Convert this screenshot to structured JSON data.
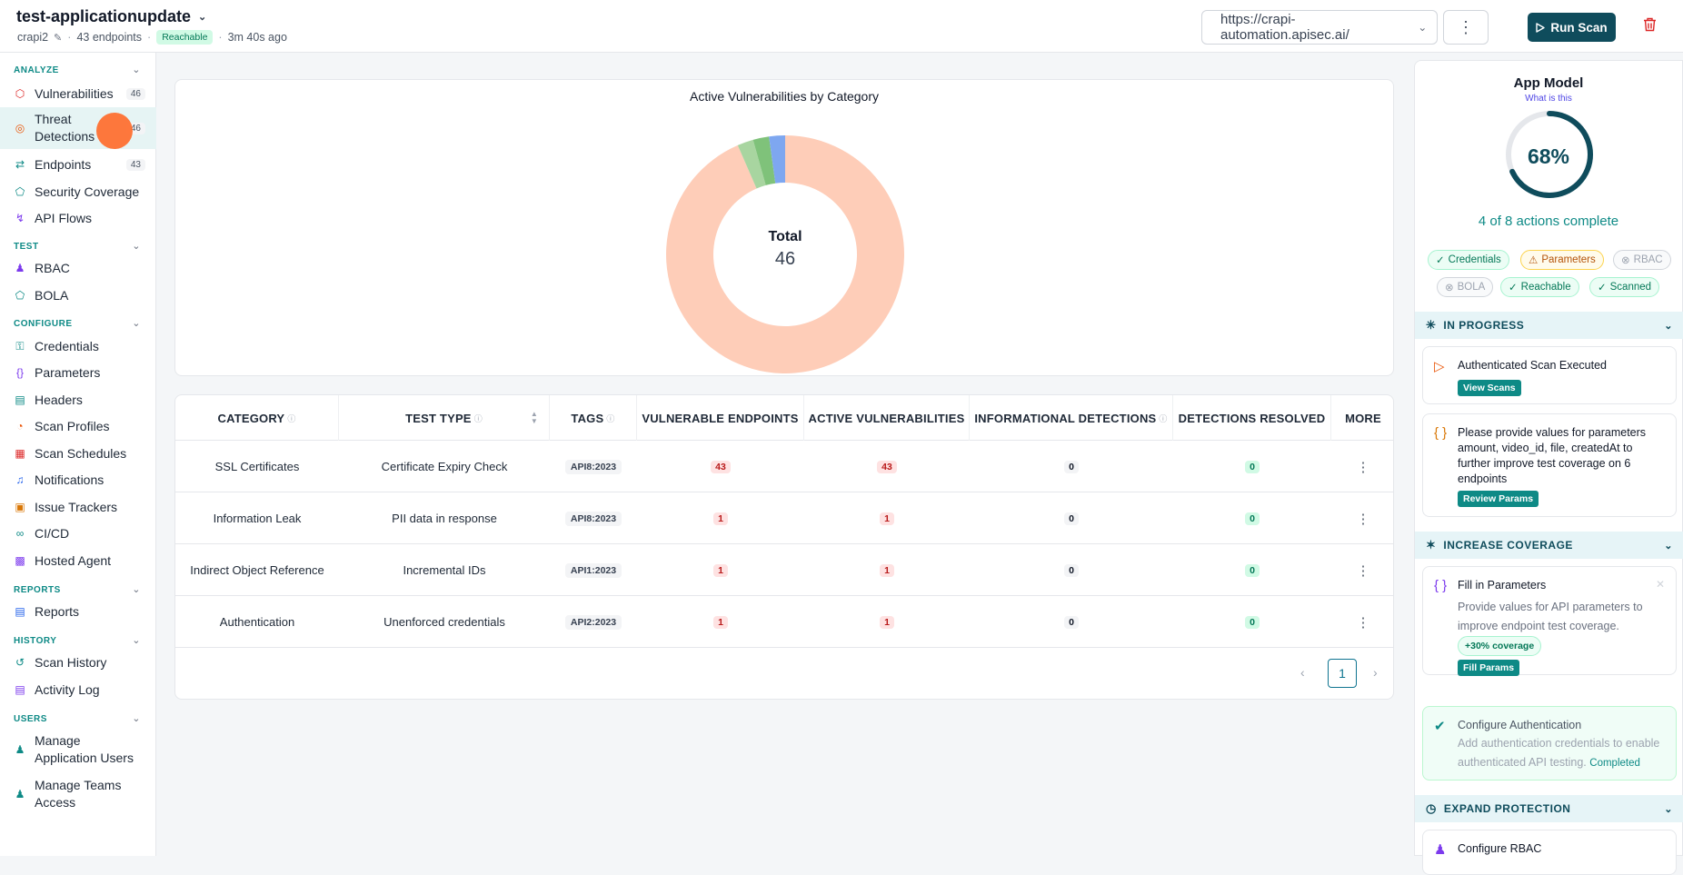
{
  "header": {
    "app_name": "test-applicationupdate",
    "project": "crapi2",
    "endpoints": "43 endpoints",
    "reachable": "Reachable",
    "updated": "3m 40s ago",
    "url": "https://crapi-automation.apisec.ai/",
    "run_scan": "Run Scan"
  },
  "sidebar": {
    "analyze": {
      "label": "ANALYZE",
      "items": [
        {
          "label": "Vulnerabilities",
          "count": "46"
        },
        {
          "label": "Threat\nDetections",
          "count": "46"
        },
        {
          "label": "Endpoints",
          "count": "43"
        },
        {
          "label": "Security Coverage"
        },
        {
          "label": "API Flows"
        }
      ]
    },
    "test": {
      "label": "TEST",
      "items": [
        {
          "label": "RBAC"
        },
        {
          "label": "BOLA"
        }
      ]
    },
    "configure": {
      "label": "CONFIGURE",
      "items": [
        {
          "label": "Credentials"
        },
        {
          "label": "Parameters"
        },
        {
          "label": "Headers"
        },
        {
          "label": "Scan Profiles"
        },
        {
          "label": "Scan Schedules"
        },
        {
          "label": "Notifications"
        },
        {
          "label": "Issue Trackers"
        },
        {
          "label": "CI/CD"
        },
        {
          "label": "Hosted Agent"
        }
      ]
    },
    "reports": {
      "label": "REPORTS",
      "items": [
        {
          "label": "Reports"
        }
      ]
    },
    "history": {
      "label": "HISTORY",
      "items": [
        {
          "label": "Scan History"
        },
        {
          "label": "Activity Log"
        }
      ]
    },
    "users": {
      "label": "USERS",
      "items": [
        {
          "label": "Manage Application Users"
        },
        {
          "label": "Manage Teams Access"
        }
      ]
    }
  },
  "chart_data": {
    "type": "pie",
    "title": "Active Vulnerabilities by Category",
    "center_label": "Total",
    "center_value": "46",
    "categories": [
      "SSL Certificates",
      "Information Leak",
      "Indirect Object Reference",
      "Authentication"
    ],
    "values": [
      43,
      1,
      1,
      1
    ],
    "colors": [
      "#fecdb8",
      "#a8d5a0",
      "#7fc27a",
      "#7ea7f0"
    ]
  },
  "table": {
    "headers": [
      "CATEGORY",
      "TEST TYPE",
      "TAGS",
      "VULNERABLE ENDPOINTS",
      "ACTIVE VULNERABILITIES",
      "INFORMATIONAL DETECTIONS",
      "DETECTIONS RESOLVED",
      "MORE"
    ],
    "rows": [
      {
        "category": "SSL Certificates",
        "test_type": "Certificate Expiry Check",
        "tag": "API8:2023",
        "vuln_endpoints": "43",
        "active": "43",
        "info": "0",
        "resolved": "0"
      },
      {
        "category": "Information Leak",
        "test_type": "PII data in response",
        "tag": "API8:2023",
        "vuln_endpoints": "1",
        "active": "1",
        "info": "0",
        "resolved": "0"
      },
      {
        "category": "Indirect Object Reference",
        "test_type": "Incremental IDs",
        "tag": "API1:2023",
        "vuln_endpoints": "1",
        "active": "1",
        "info": "0",
        "resolved": "0"
      },
      {
        "category": "Authentication",
        "test_type": "Unenforced credentials",
        "tag": "API2:2023",
        "vuln_endpoints": "1",
        "active": "1",
        "info": "0",
        "resolved": "0"
      }
    ],
    "page": "1"
  },
  "app_model": {
    "title": "App Model",
    "link": "What is this",
    "percent": "68%",
    "progress": 0.68,
    "actions": "4 of 8 actions complete",
    "chips": {
      "credentials": "Credentials",
      "parameters": "Parameters",
      "rbac": "RBAC",
      "bola": "BOLA",
      "reachable": "Reachable",
      "scanned": "Scanned"
    },
    "in_progress": {
      "label": "IN PROGRESS",
      "card1_title": "Authenticated Scan Executed",
      "card1_btn": "View Scans",
      "card2_title": "Please provide values for parameters amount, video_id, file, createdAt to further improve test coverage on 6 endpoints",
      "card2_btn": "Review Params"
    },
    "increase_coverage": {
      "label": "INCREASE COVERAGE",
      "card1_title": "Fill in Parameters",
      "card1_body": "Provide values for API parameters to improve endpoint test coverage.",
      "card1_chip": "+30% coverage",
      "card1_btn": "Fill Params",
      "card2_title": "Configure Authentication",
      "card2_body": "Add authentication credentials to enable authenticated API testing.",
      "card2_status": "Completed"
    },
    "expand_protection": {
      "label": "EXPAND PROTECTION",
      "card1_title": "Configure RBAC"
    }
  }
}
